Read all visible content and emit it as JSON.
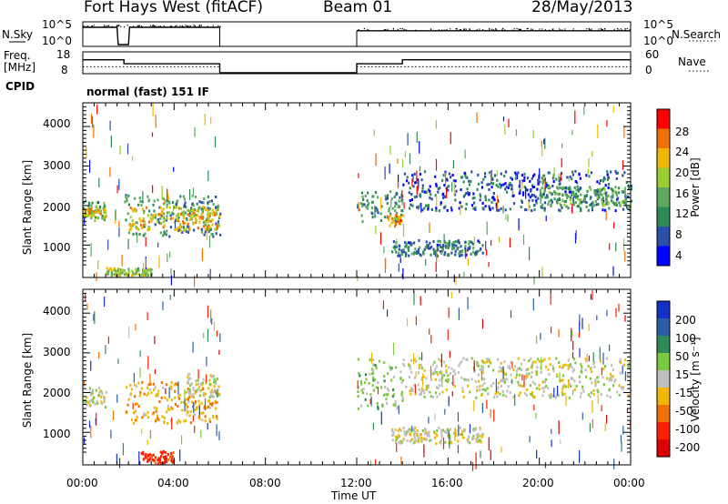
{
  "header": {
    "station": "Fort Hays West (fitACF)",
    "beam": "Beam 01",
    "date": "28/May/2013"
  },
  "sky_panel": {
    "left_label": "N.Sky",
    "right_label": "N.Search",
    "ticks": [
      "10^5",
      "10^0"
    ],
    "right_ticks": [
      "10^5",
      "10^0"
    ]
  },
  "freq_panel": {
    "left_label_top": "Freq.",
    "left_label_bottom": "[MHz]",
    "ticks": [
      "18",
      "8"
    ],
    "right_label": "Nave",
    "right_ticks": [
      "60",
      "0"
    ]
  },
  "cpid": {
    "label": "CPID",
    "mode": "normal (fast) 151 IF"
  },
  "power_panel": {
    "ylabel": "Slant Range [km]",
    "yticks": [
      "4000",
      "3000",
      "2000",
      "1000"
    ],
    "colorbar_label": "Power [dB]",
    "colorbar_ticks": [
      "28",
      "24",
      "20",
      "16",
      "12",
      "8",
      "4"
    ],
    "colorbar_colors": [
      "#0000ff",
      "#2c4ea8",
      "#2e8b57",
      "#5ea860",
      "#9acd32",
      "#f0b800",
      "#f07000",
      "#ff0000"
    ]
  },
  "velocity_panel": {
    "ylabel": "Slant Range [km]",
    "yticks": [
      "4000",
      "3000",
      "2000",
      "1000"
    ],
    "colorbar_label": "Velocity [m s⁻¹]",
    "colorbar_ticks": [
      "200",
      "100",
      "50",
      "15",
      "-15",
      "-50",
      "-100",
      "-200"
    ],
    "colorbar_colors": [
      "#1530c8",
      "#2c5ea8",
      "#2e8b57",
      "#7cc940",
      "#c0c0c0",
      "#f0b800",
      "#f07000",
      "#ff2000",
      "#dd0000"
    ]
  },
  "x_axis": {
    "xlabel": "Time UT",
    "ticks": [
      "00:00",
      "04:00",
      "08:00",
      "12:00",
      "16:00",
      "20:00",
      "00:00"
    ]
  },
  "chart_data": [
    {
      "type": "heatmap",
      "title": "Power [dB]",
      "xlabel": "Time UT",
      "ylabel": "Slant Range [km]",
      "xlim": [
        0,
        24
      ],
      "ylim": [
        180,
        4600
      ],
      "clim": [
        0,
        30
      ],
      "gap_hours": [
        6.0,
        12.0
      ],
      "bands": [
        {
          "t0": 0.0,
          "t1": 1.0,
          "r0": 1650,
          "r1": 2150,
          "value": 12
        },
        {
          "t0": 0.0,
          "t1": 1.0,
          "r0": 1750,
          "r1": 1950,
          "value": 20
        },
        {
          "t0": 1.8,
          "t1": 6.0,
          "r0": 1250,
          "r1": 2300,
          "value": 10
        },
        {
          "t0": 2.0,
          "t1": 6.0,
          "r0": 1400,
          "r1": 2000,
          "value": 20
        },
        {
          "t0": 1.0,
          "t1": 3.0,
          "r0": 250,
          "r1": 450,
          "value": 16
        },
        {
          "t0": 12.0,
          "t1": 14.0,
          "r0": 1600,
          "r1": 2400,
          "value": 10
        },
        {
          "t0": 13.3,
          "t1": 14.0,
          "r0": 1500,
          "r1": 1800,
          "value": 22
        },
        {
          "t0": 13.5,
          "t1": 17.5,
          "r0": 750,
          "r1": 1150,
          "value": 8
        },
        {
          "t0": 14.0,
          "t1": 24.0,
          "r0": 1900,
          "r1": 2900,
          "value": 6
        },
        {
          "t0": 20.0,
          "t1": 24.0,
          "r0": 2000,
          "r1": 2500,
          "value": 12
        }
      ]
    },
    {
      "type": "heatmap",
      "title": "Velocity [m s⁻¹]",
      "xlabel": "Time UT",
      "ylabel": "Slant Range [km]",
      "xlim": [
        0,
        24
      ],
      "ylim": [
        180,
        4600
      ],
      "clim": [
        -250,
        250
      ],
      "gap_hours": [
        6.0,
        12.0
      ],
      "bands": [
        {
          "t0": 0.0,
          "t1": 1.0,
          "r0": 1650,
          "r1": 2150,
          "value": 0
        },
        {
          "t0": 1.8,
          "t1": 6.0,
          "r0": 1250,
          "r1": 2300,
          "value": -40
        },
        {
          "t0": 4.5,
          "t1": 6.0,
          "r0": 1900,
          "r1": 2500,
          "value": 0
        },
        {
          "t0": 2.5,
          "t1": 4.0,
          "r0": 250,
          "r1": 550,
          "value": -120
        },
        {
          "t0": 12.0,
          "t1": 14.0,
          "r0": 1600,
          "r1": 2900,
          "value": 30
        },
        {
          "t0": 14.0,
          "t1": 24.0,
          "r0": 1900,
          "r1": 2900,
          "value": 0
        },
        {
          "t0": 13.5,
          "t1": 17.5,
          "r0": 750,
          "r1": 1150,
          "value": 0
        }
      ]
    },
    {
      "type": "line",
      "title": "Freq. [MHz]",
      "ylim": [
        8,
        18
      ],
      "series": [
        {
          "x": [
            0.0,
            1.8,
            1.8,
            6.0,
            6.0,
            12.0,
            12.0,
            14.0,
            14.0,
            24.0
          ],
          "values": [
            14.5,
            14.5,
            12.5,
            12.5,
            8,
            8,
            12.5,
            12.5,
            14.5,
            14.5
          ]
        }
      ]
    },
    {
      "type": "line",
      "title": "Nave",
      "ylim": [
        0,
        60
      ],
      "series": [
        {
          "x": [
            0.0,
            6.0,
            12.0,
            24.0
          ],
          "values": [
            18,
            18,
            18,
            18
          ]
        }
      ]
    },
    {
      "type": "line",
      "title": "N.Sky",
      "series": [
        {
          "x": [
            0.0,
            1.5,
            1.55,
            2.0,
            2.05,
            6.0,
            12.0,
            14.0,
            24.0
          ],
          "values": [
            5,
            5,
            0,
            0,
            5,
            5,
            4,
            4,
            4
          ]
        }
      ]
    }
  ]
}
